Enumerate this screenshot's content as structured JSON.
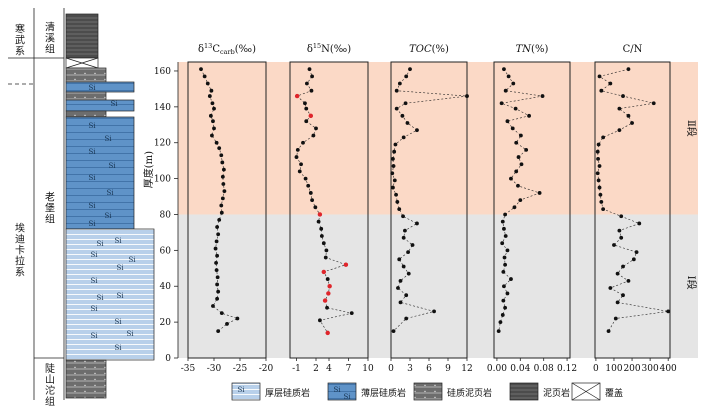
{
  "y_axis": {
    "label": "厚度(m)",
    "ticks": [
      "0",
      "20",
      "40",
      "60",
      "80",
      "100",
      "120",
      "140",
      "160"
    ]
  },
  "colors": {
    "zone_upper": "#fbd9c6",
    "zone_lower": "#e5e5e5",
    "thick_si": "#b8d0ea",
    "thin_si": "#5f93c8",
    "shale": "#6d6d6d",
    "mudstone": "#4c4c4c",
    "point_black": "#111111",
    "point_red": "#e0252b"
  },
  "stratigraphy": {
    "systems": [
      {
        "label": "寒武系"
      },
      {
        "label": "埃迪卡拉系"
      }
    ],
    "formations": [
      {
        "label": "清溪组"
      },
      {
        "label": "老堡组"
      },
      {
        "label": "陡山沱组"
      }
    ],
    "layer_marks": [
      "Si",
      "Si",
      "Si",
      "Si",
      "Si",
      "Si",
      "Si",
      "Si",
      "Si",
      "Si",
      "Si",
      "Si",
      "Si",
      "Si",
      "Si",
      "Si",
      "Si",
      "Si",
      "Si",
      "Si",
      "Si",
      "Si",
      "Si",
      "Si"
    ]
  },
  "zones": [
    {
      "label": "Ⅱ段",
      "from": 80,
      "to": 165
    },
    {
      "label": "Ⅰ段",
      "from": 0,
      "to": 80
    }
  ],
  "chart_data": [
    {
      "type": "scatter",
      "title": "δ13Ccarb(‰)",
      "title_parts": [
        "δ",
        "13",
        "C",
        "carb",
        "(‰)"
      ],
      "xlim": [
        -35,
        -20
      ],
      "xticks": [
        "-35",
        "-30",
        "-25",
        "-20"
      ],
      "ylim": [
        0,
        165
      ],
      "points": [
        {
          "y": 161,
          "x": -32.5
        },
        {
          "y": 157,
          "x": -31.8
        },
        {
          "y": 153,
          "x": -31.2
        },
        {
          "y": 149,
          "x": -30.5
        },
        {
          "y": 146,
          "x": -30.8
        },
        {
          "y": 142,
          "x": -30.3
        },
        {
          "y": 139,
          "x": -30.0
        },
        {
          "y": 135,
          "x": -30.6
        },
        {
          "y": 132,
          "x": -30.2
        },
        {
          "y": 128,
          "x": -30.0
        },
        {
          "y": 124,
          "x": -30.4
        },
        {
          "y": 120,
          "x": -29.5
        },
        {
          "y": 117,
          "x": -29.0
        },
        {
          "y": 113,
          "x": -28.6
        },
        {
          "y": 109,
          "x": -28.4
        },
        {
          "y": 105,
          "x": -28.1
        },
        {
          "y": 101,
          "x": -28.3
        },
        {
          "y": 97,
          "x": -28.2
        },
        {
          "y": 93,
          "x": -28.0
        },
        {
          "y": 89,
          "x": -28.3
        },
        {
          "y": 85,
          "x": -28.6
        },
        {
          "y": 81,
          "x": -28.5
        },
        {
          "y": 77,
          "x": -29.0
        },
        {
          "y": 73,
          "x": -29.4
        },
        {
          "y": 69,
          "x": -29.2
        },
        {
          "y": 65,
          "x": -29.5
        },
        {
          "y": 61,
          "x": -29.7
        },
        {
          "y": 57,
          "x": -29.4
        },
        {
          "y": 53,
          "x": -29.6
        },
        {
          "y": 49,
          "x": -29.5
        },
        {
          "y": 45,
          "x": -29.3
        },
        {
          "y": 41,
          "x": -29.4
        },
        {
          "y": 37,
          "x": -29.2
        },
        {
          "y": 33,
          "x": -29.4
        },
        {
          "y": 29,
          "x": -30.2
        },
        {
          "y": 25,
          "x": -28.5
        },
        {
          "y": 22,
          "x": -25.5
        },
        {
          "y": 19,
          "x": -27.5
        },
        {
          "y": 15,
          "x": -29.2
        }
      ],
      "red_points": []
    },
    {
      "type": "scatter",
      "title": "δ15N(‰)",
      "title_parts": [
        "δ",
        "15",
        "N",
        "",
        "(‰)"
      ],
      "xlim": [
        -2,
        10
      ],
      "xticks": [
        "-1",
        "2",
        "4",
        "7",
        "10"
      ],
      "ylim": [
        0,
        165
      ],
      "points": [
        {
          "y": 161,
          "x": 1.0
        },
        {
          "y": 157,
          "x": 1.4
        },
        {
          "y": 153,
          "x": 0.6
        },
        {
          "y": 149,
          "x": 1.3
        },
        {
          "y": 146,
          "x": -0.9
        },
        {
          "y": 142,
          "x": 0.3
        },
        {
          "y": 139,
          "x": 0.5
        },
        {
          "y": 135,
          "x": 1.2
        },
        {
          "y": 132,
          "x": 0.5
        },
        {
          "y": 128,
          "x": 2.0
        },
        {
          "y": 124,
          "x": 1.6
        },
        {
          "y": 120,
          "x": 0.0
        },
        {
          "y": 116,
          "x": -0.8
        },
        {
          "y": 112,
          "x": -1.0
        },
        {
          "y": 108,
          "x": -0.3
        },
        {
          "y": 104,
          "x": -0.5
        },
        {
          "y": 100,
          "x": 0.4
        },
        {
          "y": 96,
          "x": 0.8
        },
        {
          "y": 92,
          "x": 1.2
        },
        {
          "y": 88,
          "x": 1.4
        },
        {
          "y": 84,
          "x": 1.9
        },
        {
          "y": 80,
          "x": 2.6
        },
        {
          "y": 76,
          "x": 2.4
        },
        {
          "y": 72,
          "x": 2.8
        },
        {
          "y": 68,
          "x": 2.9
        },
        {
          "y": 64,
          "x": 3.2
        },
        {
          "y": 60,
          "x": 3.6
        },
        {
          "y": 56,
          "x": 3.5
        },
        {
          "y": 52,
          "x": 6.6
        },
        {
          "y": 48,
          "x": 3.2
        },
        {
          "y": 44,
          "x": 3.8
        },
        {
          "y": 40,
          "x": 4.1
        },
        {
          "y": 36,
          "x": 3.9
        },
        {
          "y": 32,
          "x": 3.4
        },
        {
          "y": 28,
          "x": 3.7
        },
        {
          "y": 25,
          "x": 7.5
        },
        {
          "y": 21,
          "x": 2.6
        },
        {
          "y": 14,
          "x": 3.8
        }
      ],
      "red_points": [
        {
          "y": 146,
          "x": -0.9
        },
        {
          "y": 135,
          "x": 1.2
        },
        {
          "y": 80,
          "x": 2.6
        },
        {
          "y": 52,
          "x": 6.6
        },
        {
          "y": 48,
          "x": 3.2
        },
        {
          "y": 40,
          "x": 4.1
        },
        {
          "y": 36,
          "x": 3.9
        },
        {
          "y": 32,
          "x": 3.4
        },
        {
          "y": 14,
          "x": 3.8
        }
      ]
    },
    {
      "type": "scatter",
      "title": "TOC(%)",
      "title_parts": [
        "TOC",
        "",
        "",
        "",
        "(%)"
      ],
      "italic": true,
      "xlim": [
        0,
        12
      ],
      "xticks": [
        "0",
        "3",
        "6",
        "9",
        "12"
      ],
      "ylim": [
        0,
        165
      ],
      "points": [
        {
          "y": 161,
          "x": 3.0
        },
        {
          "y": 157,
          "x": 2.4
        },
        {
          "y": 153,
          "x": 1.4
        },
        {
          "y": 149,
          "x": 0.9
        },
        {
          "y": 146,
          "x": 12.0
        },
        {
          "y": 142,
          "x": 2.3
        },
        {
          "y": 139,
          "x": 0.9
        },
        {
          "y": 135,
          "x": 1.8
        },
        {
          "y": 131,
          "x": 2.6
        },
        {
          "y": 127,
          "x": 4.1
        },
        {
          "y": 123,
          "x": 2.0
        },
        {
          "y": 119,
          "x": 0.7
        },
        {
          "y": 115,
          "x": 0.5
        },
        {
          "y": 111,
          "x": 0.3
        },
        {
          "y": 107,
          "x": 0.4
        },
        {
          "y": 103,
          "x": 0.2
        },
        {
          "y": 99,
          "x": 0.6
        },
        {
          "y": 95,
          "x": 0.3
        },
        {
          "y": 91,
          "x": 0.8
        },
        {
          "y": 87,
          "x": 1.0
        },
        {
          "y": 83,
          "x": 1.3
        },
        {
          "y": 79,
          "x": 1.9
        },
        {
          "y": 75,
          "x": 4.1
        },
        {
          "y": 71,
          "x": 2.2
        },
        {
          "y": 67,
          "x": 2.0
        },
        {
          "y": 63,
          "x": 3.4
        },
        {
          "y": 59,
          "x": 2.7
        },
        {
          "y": 55,
          "x": 1.3
        },
        {
          "y": 51,
          "x": 2.0
        },
        {
          "y": 47,
          "x": 2.8
        },
        {
          "y": 43,
          "x": 1.5
        },
        {
          "y": 39,
          "x": 1.1
        },
        {
          "y": 35,
          "x": 2.4
        },
        {
          "y": 31,
          "x": 1.5
        },
        {
          "y": 26,
          "x": 6.8
        },
        {
          "y": 22,
          "x": 2.4
        },
        {
          "y": 15,
          "x": 0.4
        }
      ],
      "red_points": []
    },
    {
      "type": "scatter",
      "title": "TN(%)",
      "title_parts": [
        "TN",
        "",
        "",
        "",
        "(%)"
      ],
      "italic": true,
      "xlim": [
        -0.005,
        0.125
      ],
      "xticks": [
        "0.00",
        "0.04",
        "0.08",
        "0.12"
      ],
      "ylim": [
        0,
        165
      ],
      "points": [
        {
          "y": 161,
          "x": 0.012
        },
        {
          "y": 157,
          "x": 0.02
        },
        {
          "y": 153,
          "x": 0.028
        },
        {
          "y": 149,
          "x": 0.015
        },
        {
          "y": 146,
          "x": 0.078
        },
        {
          "y": 142,
          "x": 0.008
        },
        {
          "y": 139,
          "x": 0.032
        },
        {
          "y": 135,
          "x": 0.055
        },
        {
          "y": 132,
          "x": 0.018
        },
        {
          "y": 128,
          "x": 0.027
        },
        {
          "y": 124,
          "x": 0.041
        },
        {
          "y": 120,
          "x": 0.033
        },
        {
          "y": 116,
          "x": 0.05
        },
        {
          "y": 112,
          "x": 0.037
        },
        {
          "y": 108,
          "x": 0.042
        },
        {
          "y": 104,
          "x": 0.033
        },
        {
          "y": 100,
          "x": 0.024
        },
        {
          "y": 96,
          "x": 0.036
        },
        {
          "y": 92,
          "x": 0.073
        },
        {
          "y": 88,
          "x": 0.04
        },
        {
          "y": 84,
          "x": 0.03
        },
        {
          "y": 80,
          "x": 0.014
        },
        {
          "y": 76,
          "x": 0.01
        },
        {
          "y": 72,
          "x": 0.012
        },
        {
          "y": 68,
          "x": 0.015
        },
        {
          "y": 64,
          "x": 0.009
        },
        {
          "y": 60,
          "x": 0.018
        },
        {
          "y": 56,
          "x": 0.013
        },
        {
          "y": 52,
          "x": 0.014
        },
        {
          "y": 48,
          "x": 0.011
        },
        {
          "y": 44,
          "x": 0.024
        },
        {
          "y": 40,
          "x": 0.012
        },
        {
          "y": 36,
          "x": 0.018
        },
        {
          "y": 32,
          "x": 0.011
        },
        {
          "y": 28,
          "x": 0.014
        },
        {
          "y": 24,
          "x": 0.01
        },
        {
          "y": 20,
          "x": 0.006
        },
        {
          "y": 15,
          "x": 0.003
        }
      ],
      "red_points": []
    },
    {
      "type": "scatter",
      "title": "C/N",
      "title_parts": [
        "C/N",
        "",
        "",
        "",
        ""
      ],
      "xlim": [
        -5,
        410
      ],
      "xticks": [
        "0",
        "100",
        "200",
        "300",
        "400"
      ],
      "ylim": [
        0,
        165
      ],
      "points": [
        {
          "y": 161,
          "x": 180
        },
        {
          "y": 157,
          "x": 20
        },
        {
          "y": 153,
          "x": 80
        },
        {
          "y": 149,
          "x": 30
        },
        {
          "y": 146,
          "x": 150
        },
        {
          "y": 142,
          "x": 320
        },
        {
          "y": 139,
          "x": 130
        },
        {
          "y": 135,
          "x": 180
        },
        {
          "y": 131,
          "x": 200
        },
        {
          "y": 127,
          "x": 130
        },
        {
          "y": 123,
          "x": 40
        },
        {
          "y": 119,
          "x": 15
        },
        {
          "y": 115,
          "x": 10
        },
        {
          "y": 111,
          "x": 12
        },
        {
          "y": 107,
          "x": 20
        },
        {
          "y": 103,
          "x": 10
        },
        {
          "y": 99,
          "x": 15
        },
        {
          "y": 95,
          "x": 20
        },
        {
          "y": 91,
          "x": 25
        },
        {
          "y": 87,
          "x": 30
        },
        {
          "y": 83,
          "x": 40
        },
        {
          "y": 79,
          "x": 140
        },
        {
          "y": 75,
          "x": 240
        },
        {
          "y": 71,
          "x": 130
        },
        {
          "y": 67,
          "x": 140
        },
        {
          "y": 63,
          "x": 100
        },
        {
          "y": 59,
          "x": 225
        },
        {
          "y": 55,
          "x": 210
        },
        {
          "y": 51,
          "x": 150
        },
        {
          "y": 47,
          "x": 120
        },
        {
          "y": 43,
          "x": 180
        },
        {
          "y": 39,
          "x": 80
        },
        {
          "y": 35,
          "x": 150
        },
        {
          "y": 31,
          "x": 120
        },
        {
          "y": 26,
          "x": 400
        },
        {
          "y": 22,
          "x": 110
        },
        {
          "y": 15,
          "x": 70
        }
      ],
      "red_points": []
    }
  ],
  "legend": [
    {
      "label": "厚层硅质岩",
      "swatch_text": "Si"
    },
    {
      "label": "薄层硅质岩",
      "swatch_text": "Si"
    },
    {
      "label": "硅质泥页岩",
      "swatch_text": ""
    },
    {
      "label": "泥页岩",
      "swatch_text": ""
    },
    {
      "label": "覆盖",
      "swatch_text": ""
    }
  ]
}
